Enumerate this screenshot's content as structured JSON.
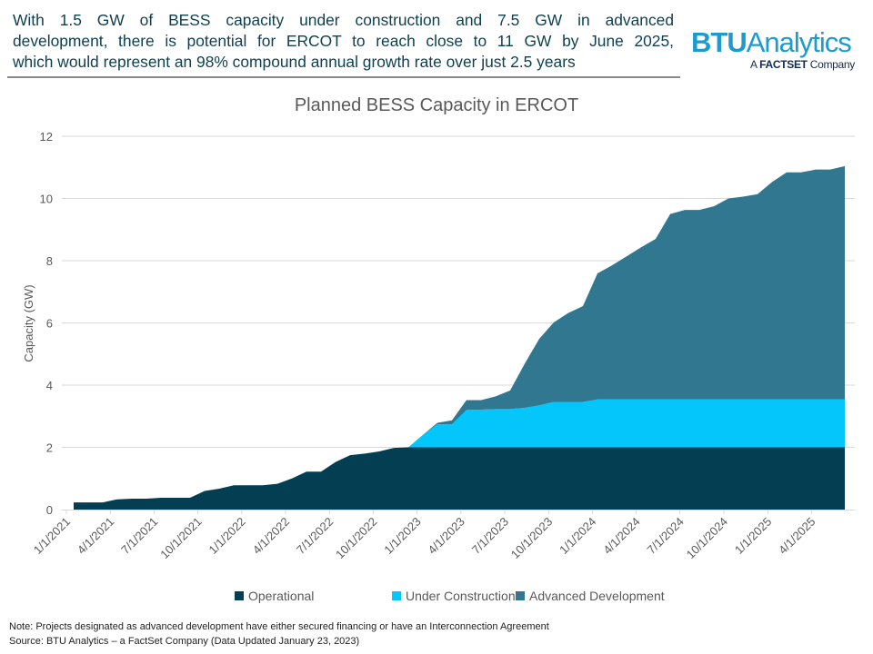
{
  "headline": {
    "lines": [
      "With 1.5 GW of BESS capacity under construction and 7.5 GW in advanced",
      "development, there is potential for ERCOT to reach close to 11 GW by June 2025,",
      "which would represent  an 98% compound annual growth rate over just 2.5 years"
    ]
  },
  "logo": {
    "brand_bold": "BTU",
    "brand_rest": "Analytics",
    "sub_prefix": "A ",
    "sub_bold": "FACTSET",
    "sub_suffix": " Company"
  },
  "chart_data": {
    "type": "area",
    "stacked": true,
    "title": "Planned BESS Capacity in ERCOT",
    "xlabel": "",
    "ylabel": "Capacity (GW)",
    "ylim": [
      0,
      12
    ],
    "yticks": [
      0,
      2,
      4,
      6,
      8,
      10,
      12
    ],
    "grid": true,
    "legend_position": "bottom",
    "x": [
      "2021-01",
      "2021-02",
      "2021-03",
      "2021-04",
      "2021-05",
      "2021-06",
      "2021-07",
      "2021-08",
      "2021-09",
      "2021-10",
      "2021-11",
      "2021-12",
      "2022-01",
      "2022-02",
      "2022-03",
      "2022-04",
      "2022-05",
      "2022-06",
      "2022-07",
      "2022-08",
      "2022-09",
      "2022-10",
      "2022-11",
      "2022-12",
      "2023-01",
      "2023-02",
      "2023-03",
      "2023-04",
      "2023-05",
      "2023-06",
      "2023-07",
      "2023-08",
      "2023-09",
      "2023-10",
      "2023-11",
      "2023-12",
      "2024-01",
      "2024-02",
      "2024-03",
      "2024-04",
      "2024-05",
      "2024-06",
      "2024-07",
      "2024-08",
      "2024-09",
      "2024-10",
      "2024-11",
      "2024-12",
      "2025-01",
      "2025-02",
      "2025-03",
      "2025-04",
      "2025-05",
      "2025-06"
    ],
    "xtick_labels": [
      "1/1/2021",
      "4/1/2021",
      "7/1/2021",
      "10/1/2021",
      "1/1/2022",
      "4/1/2022",
      "7/1/2022",
      "10/1/2022",
      "1/1/2023",
      "4/1/2023",
      "7/1/2023",
      "10/1/2023",
      "1/1/2024",
      "4/1/2024",
      "7/1/2024",
      "10/1/2024",
      "1/1/2025",
      "4/1/2025"
    ],
    "series": [
      {
        "name": "Operational",
        "color": "#043e52",
        "values": [
          0.23,
          0.23,
          0.23,
          0.33,
          0.35,
          0.35,
          0.38,
          0.38,
          0.38,
          0.6,
          0.67,
          0.78,
          0.78,
          0.78,
          0.83,
          1.0,
          1.22,
          1.22,
          1.53,
          1.75,
          1.8,
          1.87,
          1.98,
          2.0,
          2.0,
          2.0,
          2.0,
          2.0,
          2.0,
          2.0,
          2.0,
          2.0,
          2.0,
          2.0,
          2.0,
          2.0,
          2.0,
          2.0,
          2.0,
          2.0,
          2.0,
          2.0,
          2.0,
          2.0,
          2.0,
          2.0,
          2.0,
          2.0,
          2.0,
          2.0,
          2.0,
          2.0,
          2.0,
          2.0
        ]
      },
      {
        "name": "Under Construction",
        "color": "#05c6fa",
        "values": [
          0,
          0,
          0,
          0,
          0,
          0,
          0,
          0,
          0,
          0,
          0,
          0,
          0,
          0,
          0,
          0,
          0,
          0,
          0,
          0,
          0,
          0,
          0,
          0,
          0.4,
          0.74,
          0.74,
          1.2,
          1.21,
          1.23,
          1.23,
          1.27,
          1.35,
          1.46,
          1.46,
          1.46,
          1.54,
          1.54,
          1.54,
          1.54,
          1.54,
          1.54,
          1.54,
          1.54,
          1.54,
          1.54,
          1.54,
          1.54,
          1.54,
          1.54,
          1.54,
          1.54,
          1.54,
          1.54
        ]
      },
      {
        "name": "Advanced Development",
        "color": "#31778f",
        "values": [
          0,
          0,
          0,
          0,
          0,
          0,
          0,
          0,
          0,
          0,
          0,
          0,
          0,
          0,
          0,
          0,
          0,
          0,
          0,
          0,
          0,
          0,
          0,
          0,
          0,
          0.05,
          0.13,
          0.32,
          0.31,
          0.41,
          0.6,
          1.42,
          2.14,
          2.56,
          2.86,
          3.08,
          4.05,
          4.31,
          4.6,
          4.89,
          5.16,
          5.96,
          6.09,
          6.09,
          6.21,
          6.46,
          6.52,
          6.6,
          6.99,
          7.3,
          7.3,
          7.39,
          7.39,
          7.5
        ]
      }
    ]
  },
  "footer": {
    "note": "Note:  Projects designated as advanced development have either secured financing or have an Interconnection Agreement",
    "source": "Source: BTU Analytics – a FactSet Company (Data Updated January 23, 2023)"
  }
}
